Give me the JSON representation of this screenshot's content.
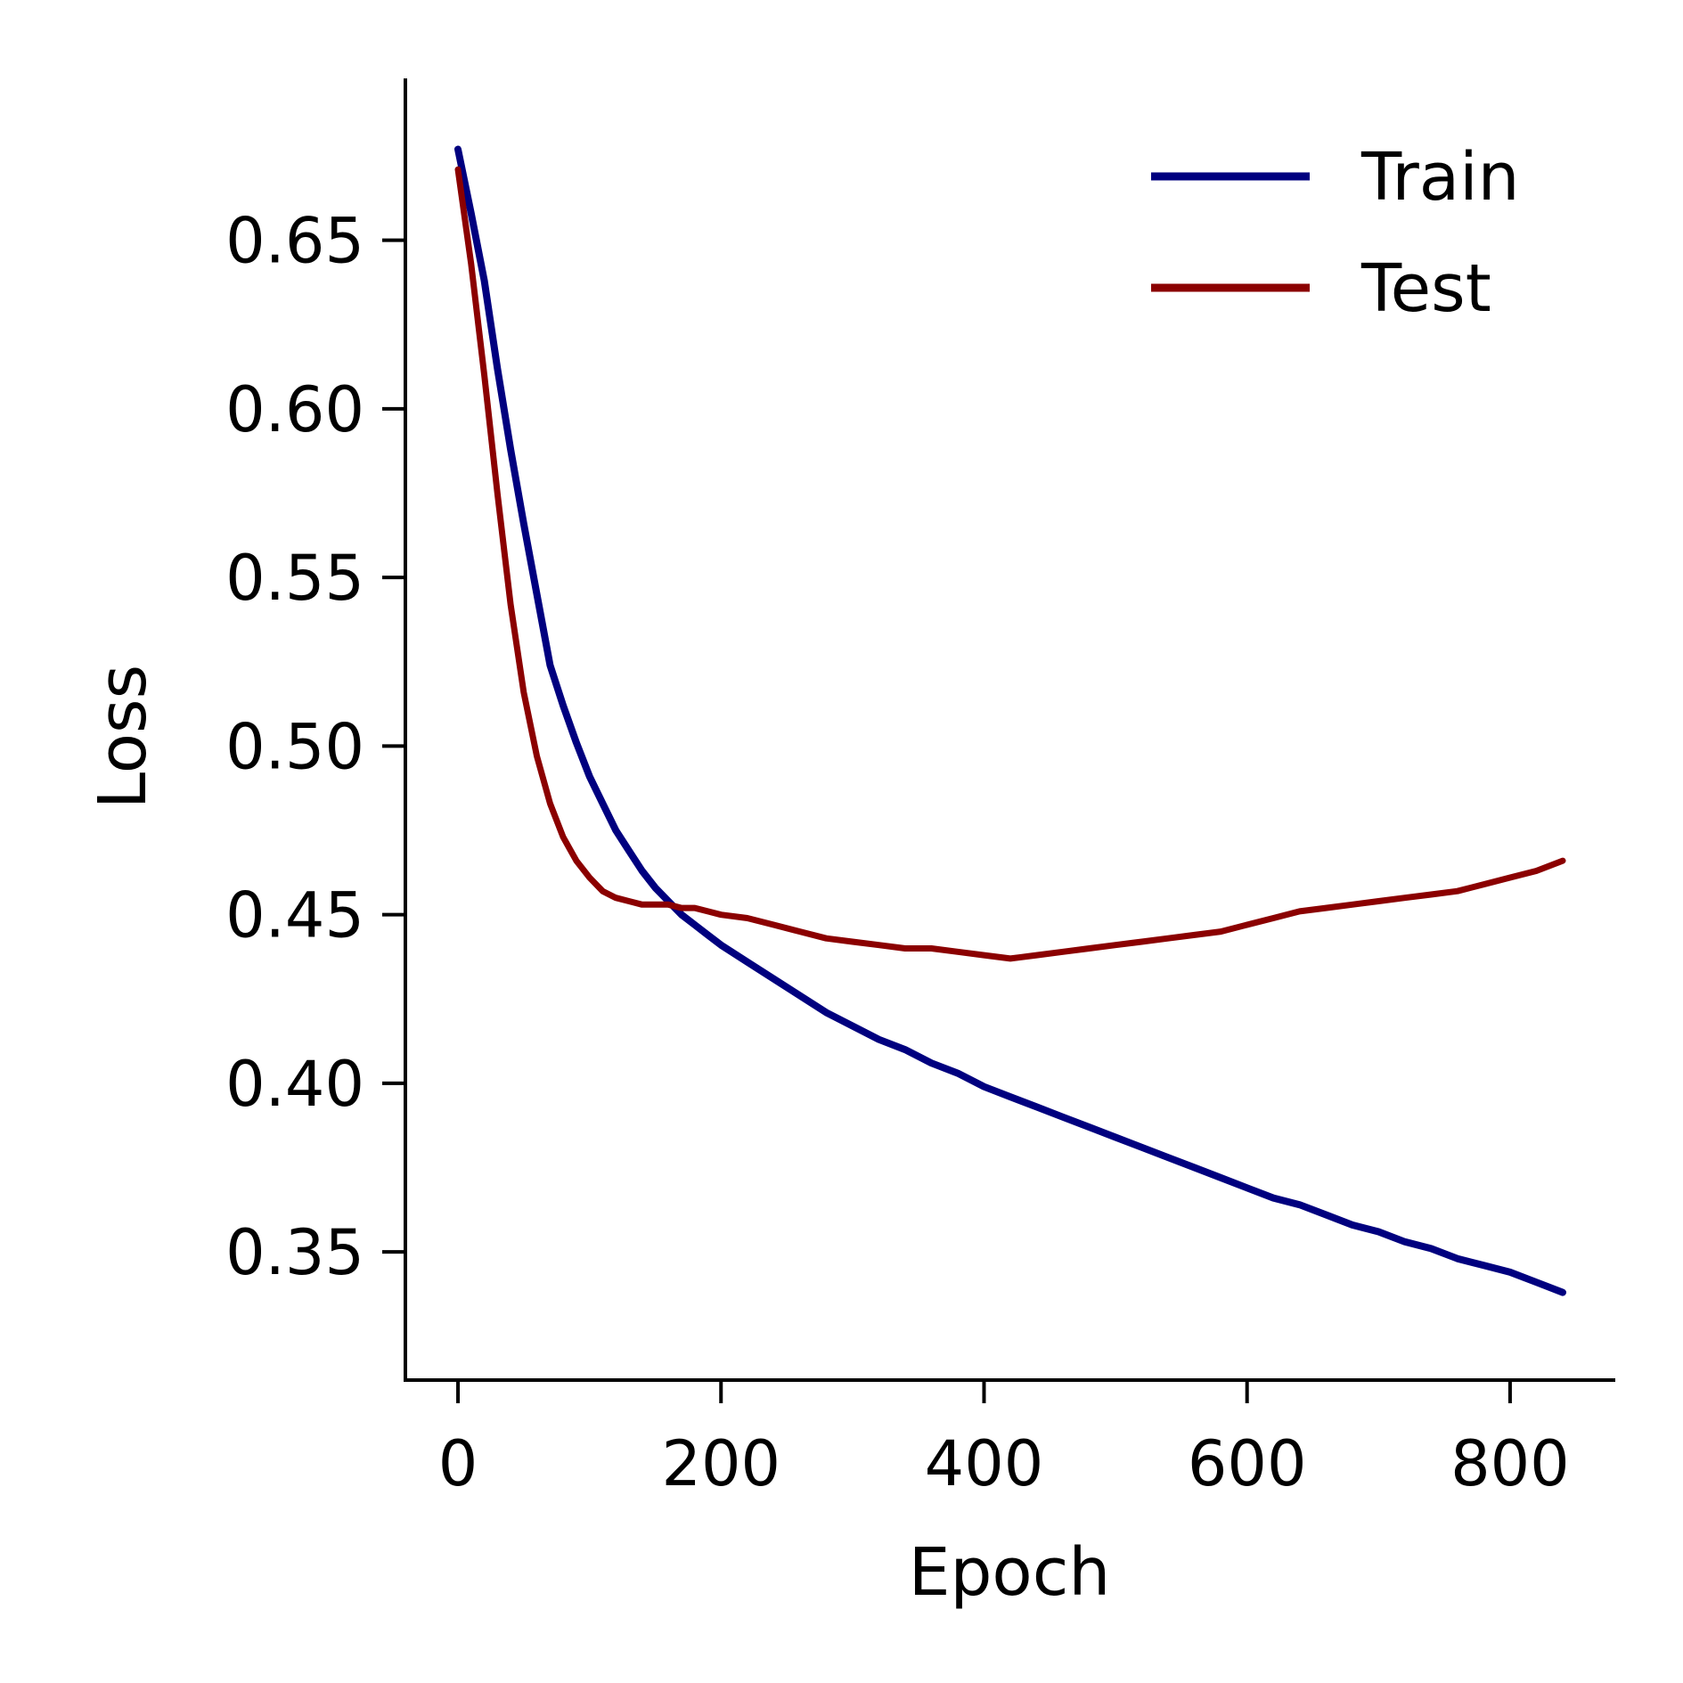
{
  "chart_data": {
    "type": "line",
    "xlabel": "Epoch",
    "ylabel": "Loss",
    "xlim": [
      -40,
      880
    ],
    "ylim": [
      0.312,
      0.698
    ],
    "xticks": [
      0,
      200,
      400,
      600,
      800
    ],
    "xtick_labels": [
      "0",
      "200",
      "400",
      "600",
      "800"
    ],
    "yticks": [
      0.35,
      0.4,
      0.45,
      0.5,
      0.55,
      0.6,
      0.65
    ],
    "ytick_labels": [
      "0.35",
      "0.40",
      "0.45",
      "0.50",
      "0.55",
      "0.60",
      "0.65"
    ],
    "grid": false,
    "legend_position": "top-right",
    "x": [
      0,
      10,
      20,
      30,
      40,
      50,
      60,
      70,
      80,
      90,
      100,
      110,
      120,
      130,
      140,
      150,
      160,
      170,
      180,
      190,
      200,
      220,
      240,
      260,
      280,
      300,
      320,
      340,
      360,
      380,
      400,
      420,
      440,
      460,
      480,
      500,
      520,
      540,
      560,
      580,
      600,
      620,
      640,
      660,
      680,
      700,
      720,
      740,
      760,
      780,
      800,
      820,
      840
    ],
    "series": [
      {
        "name": "Train",
        "color": "#00007f",
        "values": [
          0.677,
          0.658,
          0.638,
          0.612,
          0.588,
          0.566,
          0.545,
          0.524,
          0.512,
          0.501,
          0.491,
          0.483,
          0.475,
          0.469,
          0.463,
          0.458,
          0.454,
          0.45,
          0.447,
          0.444,
          0.441,
          0.436,
          0.431,
          0.426,
          0.421,
          0.417,
          0.413,
          0.41,
          0.406,
          0.403,
          0.399,
          0.396,
          0.393,
          0.39,
          0.387,
          0.384,
          0.381,
          0.378,
          0.375,
          0.372,
          0.369,
          0.366,
          0.364,
          0.361,
          0.358,
          0.356,
          0.353,
          0.351,
          0.348,
          0.346,
          0.344,
          0.341,
          0.338
        ]
      },
      {
        "name": "Test",
        "color": "#8b0000",
        "values": [
          0.671,
          0.643,
          0.61,
          0.575,
          0.542,
          0.516,
          0.497,
          0.483,
          0.473,
          0.466,
          0.461,
          0.457,
          0.455,
          0.454,
          0.453,
          0.453,
          0.453,
          0.452,
          0.452,
          0.451,
          0.45,
          0.449,
          0.447,
          0.445,
          0.443,
          0.442,
          0.441,
          0.44,
          0.44,
          0.439,
          0.438,
          0.437,
          0.438,
          0.439,
          0.44,
          0.441,
          0.442,
          0.443,
          0.444,
          0.445,
          0.447,
          0.449,
          0.451,
          0.452,
          0.453,
          0.454,
          0.455,
          0.456,
          0.457,
          0.459,
          0.461,
          0.463,
          0.466
        ]
      }
    ]
  }
}
